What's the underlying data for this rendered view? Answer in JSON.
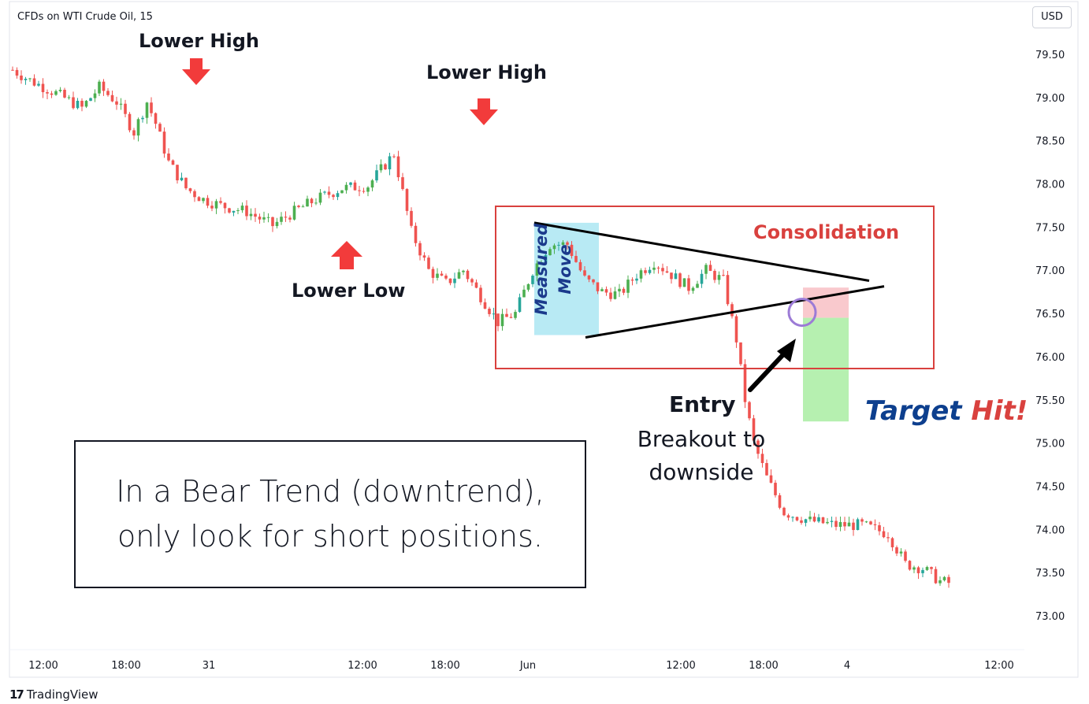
{
  "header": {
    "symbol": "CFDs on WTI Crude Oil, 15",
    "currency": "USD"
  },
  "footer": {
    "logo_mark": "17",
    "logo_text": "TradingView"
  },
  "annotations": {
    "lower_high_1": "Lower High",
    "lower_low": "Lower Low",
    "lower_high_2": "Lower High",
    "consolidation": "Consolidation",
    "measured_line1": "Measured",
    "measured_line2": "Move",
    "entry_title": "Entry",
    "entry_sub1": "Breakout to",
    "entry_sub2": "downside",
    "target_part1": "Target",
    "target_part2": "Hit!",
    "message_line1": "In a Bear Trend (downtrend),",
    "message_line2": "only look for short positions."
  },
  "colors": {
    "up": "#26a69a",
    "up_alt": "#4caf50",
    "down": "#ef5350",
    "arrow": "#f23b3b",
    "box": "#d9413e",
    "measured_fill": "#b8eaf4",
    "stop_fill": "#f9c9cd",
    "target_fill": "#b6f0b0",
    "circle": "#9c7bd6"
  },
  "chart_data": {
    "type": "candlestick",
    "x_ticks": [
      "12:00",
      "18:00",
      "31",
      "12:00",
      "18:00",
      "Jun",
      "12:00",
      "18:00",
      "4",
      "12:00"
    ],
    "y_ticks": [
      "79.50",
      "79.00",
      "78.50",
      "78.00",
      "77.50",
      "77.00",
      "76.50",
      "76.00",
      "75.50",
      "75.00",
      "74.50",
      "74.00",
      "73.50",
      "73.00"
    ],
    "ylim": [
      72.6,
      79.95
    ],
    "path_anchors": [
      [
        0,
        79.32
      ],
      [
        4,
        79.2
      ],
      [
        10,
        79.05
      ],
      [
        16,
        78.88
      ],
      [
        20,
        79.12
      ],
      [
        24,
        78.95
      ],
      [
        28,
        78.6
      ],
      [
        31,
        78.95
      ],
      [
        33,
        78.7
      ],
      [
        36,
        78.25
      ],
      [
        40,
        77.95
      ],
      [
        44,
        77.82
      ],
      [
        48,
        77.75
      ],
      [
        54,
        77.68
      ],
      [
        60,
        77.52
      ],
      [
        64,
        77.65
      ],
      [
        70,
        77.82
      ],
      [
        76,
        77.95
      ],
      [
        82,
        77.98
      ],
      [
        88,
        78.35
      ],
      [
        92,
        77.45
      ],
      [
        96,
        77.0
      ],
      [
        100,
        76.85
      ],
      [
        104,
        77.0
      ],
      [
        108,
        76.7
      ],
      [
        112,
        76.4
      ],
      [
        116,
        76.5
      ],
      [
        120,
        77.0
      ],
      [
        124,
        77.3
      ],
      [
        128,
        77.3
      ],
      [
        132,
        76.9
      ],
      [
        136,
        76.75
      ],
      [
        140,
        76.72
      ],
      [
        144,
        76.95
      ],
      [
        148,
        77.1
      ],
      [
        152,
        76.95
      ],
      [
        156,
        76.8
      ],
      [
        160,
        77.0
      ],
      [
        164,
        76.88
      ],
      [
        167,
        76.2
      ],
      [
        169,
        75.5
      ],
      [
        171,
        75.0
      ],
      [
        174,
        74.6
      ],
      [
        178,
        74.2
      ],
      [
        184,
        74.1
      ],
      [
        190,
        74.05
      ],
      [
        196,
        74.05
      ],
      [
        202,
        73.95
      ],
      [
        206,
        73.6
      ],
      [
        210,
        73.55
      ],
      [
        214,
        73.4
      ],
      [
        216,
        73.38
      ]
    ],
    "consolidation_range": [
      76.15,
      77.85
    ],
    "triangle_upper": [
      [
        121,
        77.55
      ],
      [
        200,
        76.97
      ]
    ],
    "triangle_lower": [
      [
        132,
        76.25
      ],
      [
        208,
        76.65
      ]
    ],
    "measured_move_range": [
      76.25,
      77.55
    ],
    "entry_price": 76.55,
    "stop_range": [
      76.45,
      76.8
    ],
    "target_range": [
      75.25,
      76.45
    ]
  }
}
